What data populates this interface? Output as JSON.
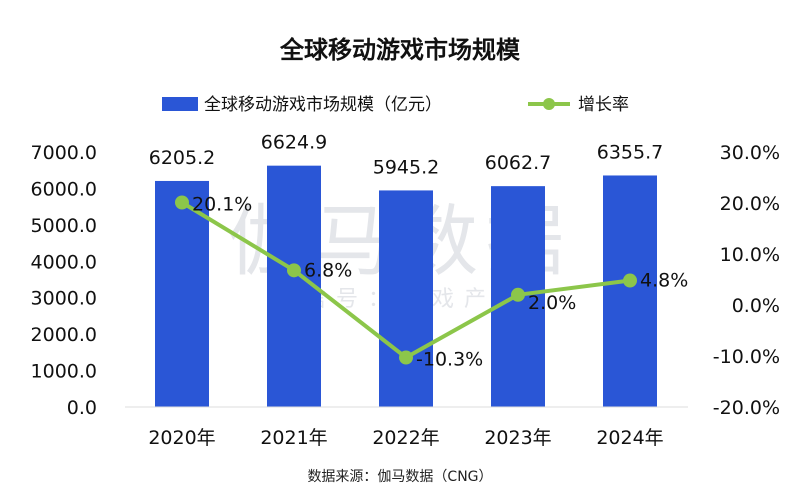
{
  "chart_data": {
    "type": "bar",
    "title": "全球移动游戏市场规模",
    "categories": [
      "2020年",
      "2021年",
      "2022年",
      "2023年",
      "2024年"
    ],
    "series": [
      {
        "name": "全球移动游戏市场规模（亿元）",
        "type": "bar",
        "axis": "left",
        "values": [
          6205.2,
          6624.9,
          5945.2,
          6062.7,
          6355.7
        ],
        "labels": [
          "6205.2",
          "6624.9",
          "5945.2",
          "6062.7",
          "6355.7"
        ],
        "color": "#2a56d6"
      },
      {
        "name": "增长率",
        "type": "line",
        "axis": "right",
        "values": [
          20.1,
          6.8,
          -10.3,
          2.0,
          4.8
        ],
        "labels": [
          "20.1%",
          "6.8%",
          "-10.3%",
          "2.0%",
          "4.8%"
        ],
        "color": "#8cc64a"
      }
    ],
    "y_left": {
      "range": [
        0,
        7000
      ],
      "ticks": [
        "0.0",
        "1000.0",
        "2000.0",
        "3000.0",
        "4000.0",
        "5000.0",
        "6000.0",
        "7000.0"
      ]
    },
    "y_right": {
      "range": [
        -20,
        30
      ],
      "ticks": [
        "-20.0%",
        "-10.0%",
        "0.0%",
        "10.0%",
        "20.0%",
        "30.0%"
      ]
    },
    "grid": false,
    "legend": "top-center",
    "source": "数据来源：伽马数据（CNG）",
    "watermark": {
      "line1": "伽马数据",
      "line2": "微信号：游戏产业"
    }
  }
}
